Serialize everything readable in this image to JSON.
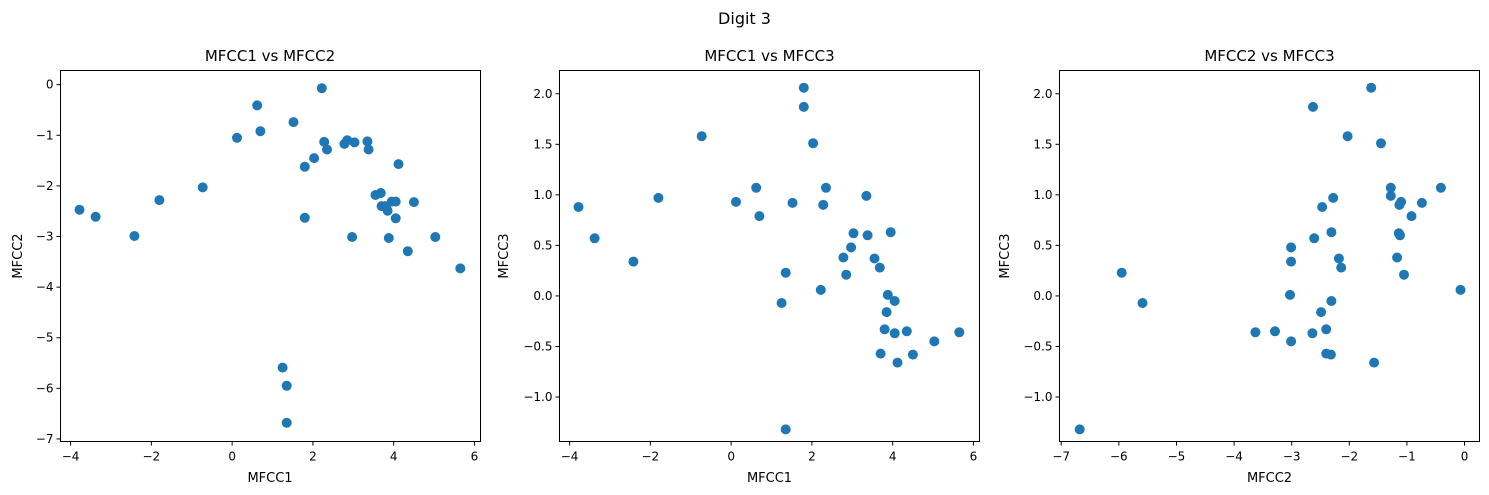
{
  "figure": {
    "title": "Digit 3"
  },
  "colors": {
    "marker": "#1f77b4"
  },
  "chart_data": [
    {
      "type": "scatter",
      "title": "MFCC1 vs MFCC2",
      "xlabel": "MFCC1",
      "ylabel": "MFCC2",
      "xlim": [
        -4.25,
        6.15
      ],
      "ylim": [
        -7.05,
        0.28
      ],
      "xticks": [
        -4,
        -2,
        0,
        2,
        4,
        6
      ],
      "yticks": [
        -7,
        -6,
        -5,
        -4,
        -3,
        -2,
        -1,
        0
      ],
      "grid": false,
      "points": [
        [
          -3.78,
          -2.47
        ],
        [
          -3.38,
          -2.61
        ],
        [
          -2.42,
          -2.99
        ],
        [
          -1.8,
          -2.28
        ],
        [
          -0.73,
          -2.03
        ],
        [
          0.12,
          -1.05
        ],
        [
          0.62,
          -0.41
        ],
        [
          0.7,
          -0.92
        ],
        [
          1.25,
          -5.59
        ],
        [
          1.35,
          -5.95
        ],
        [
          1.35,
          -6.68
        ],
        [
          1.52,
          -0.74
        ],
        [
          1.8,
          -1.62
        ],
        [
          1.8,
          -2.63
        ],
        [
          2.03,
          -1.45
        ],
        [
          2.22,
          -0.07
        ],
        [
          2.28,
          -1.13
        ],
        [
          2.35,
          -1.28
        ],
        [
          2.78,
          -1.17
        ],
        [
          2.85,
          -1.1
        ],
        [
          2.97,
          -3.01
        ],
        [
          3.03,
          -1.14
        ],
        [
          3.35,
          -1.12
        ],
        [
          3.38,
          -1.28
        ],
        [
          3.55,
          -2.18
        ],
        [
          3.68,
          -2.14
        ],
        [
          3.7,
          -2.4
        ],
        [
          3.8,
          -2.4
        ],
        [
          3.85,
          -2.49
        ],
        [
          3.88,
          -3.03
        ],
        [
          3.95,
          -2.31
        ],
        [
          4.05,
          -2.64
        ],
        [
          4.05,
          -2.31
        ],
        [
          4.12,
          -1.57
        ],
        [
          4.35,
          -3.29
        ],
        [
          4.5,
          -2.32
        ],
        [
          5.03,
          -3.01
        ],
        [
          5.65,
          -3.63
        ]
      ]
    },
    {
      "type": "scatter",
      "title": "MFCC1 vs MFCC3",
      "xlabel": "MFCC1",
      "ylabel": "MFCC3",
      "xlim": [
        -4.25,
        6.15
      ],
      "ylim": [
        -1.44,
        2.23
      ],
      "xticks": [
        -4,
        -2,
        0,
        2,
        4,
        6
      ],
      "yticks": [
        -1.0,
        -0.5,
        0.0,
        0.5,
        1.0,
        1.5,
        2.0
      ],
      "grid": false,
      "points": [
        [
          -3.78,
          0.88
        ],
        [
          -3.38,
          0.57
        ],
        [
          -2.42,
          0.34
        ],
        [
          -1.8,
          0.97
        ],
        [
          -0.73,
          1.58
        ],
        [
          0.12,
          0.93
        ],
        [
          0.62,
          1.07
        ],
        [
          0.7,
          0.79
        ],
        [
          1.25,
          -0.07
        ],
        [
          1.35,
          0.23
        ],
        [
          1.35,
          -1.32
        ],
        [
          1.52,
          0.92
        ],
        [
          1.8,
          2.06
        ],
        [
          1.8,
          1.87
        ],
        [
          2.03,
          1.51
        ],
        [
          2.22,
          0.06
        ],
        [
          2.28,
          0.9
        ],
        [
          2.35,
          1.07
        ],
        [
          2.78,
          0.38
        ],
        [
          2.85,
          0.21
        ],
        [
          2.97,
          0.48
        ],
        [
          3.03,
          0.62
        ],
        [
          3.35,
          0.99
        ],
        [
          3.38,
          0.6
        ],
        [
          3.55,
          0.37
        ],
        [
          3.68,
          0.28
        ],
        [
          3.7,
          -0.57
        ],
        [
          3.8,
          -0.33
        ],
        [
          3.85,
          -0.16
        ],
        [
          3.88,
          0.01
        ],
        [
          3.95,
          0.63
        ],
        [
          4.05,
          -0.05
        ],
        [
          4.05,
          -0.37
        ],
        [
          4.12,
          -0.66
        ],
        [
          4.35,
          -0.35
        ],
        [
          4.5,
          -0.58
        ],
        [
          5.03,
          -0.45
        ],
        [
          5.65,
          -0.36
        ]
      ]
    },
    {
      "type": "scatter",
      "title": "MFCC2 vs MFCC3",
      "xlabel": "MFCC2",
      "ylabel": "MFCC3",
      "xlim": [
        -7.03,
        0.26
      ],
      "ylim": [
        -1.44,
        2.23
      ],
      "xticks": [
        -7,
        -6,
        -5,
        -4,
        -3,
        -2,
        -1,
        0
      ],
      "yticks": [
        -1.0,
        -0.5,
        0.0,
        0.5,
        1.0,
        1.5,
        2.0
      ],
      "grid": false,
      "points": [
        [
          -6.68,
          -1.32
        ],
        [
          -5.95,
          0.23
        ],
        [
          -5.59,
          -0.07
        ],
        [
          -3.63,
          -0.36
        ],
        [
          -3.29,
          -0.35
        ],
        [
          -3.03,
          0.01
        ],
        [
          -3.01,
          0.48
        ],
        [
          -3.01,
          0.34
        ],
        [
          -3.01,
          -0.45
        ],
        [
          -2.64,
          -0.37
        ],
        [
          -2.63,
          1.87
        ],
        [
          -2.61,
          0.57
        ],
        [
          -2.49,
          -0.16
        ],
        [
          -2.47,
          0.88
        ],
        [
          -2.4,
          -0.33
        ],
        [
          -2.4,
          -0.57
        ],
        [
          -2.32,
          -0.58
        ],
        [
          -2.31,
          -0.05
        ],
        [
          -2.31,
          0.63
        ],
        [
          -2.28,
          0.97
        ],
        [
          -2.18,
          0.37
        ],
        [
          -2.14,
          0.28
        ],
        [
          -2.03,
          1.58
        ],
        [
          -1.62,
          2.06
        ],
        [
          -1.57,
          -0.66
        ],
        [
          -1.45,
          1.51
        ],
        [
          -1.28,
          0.99
        ],
        [
          -1.28,
          1.07
        ],
        [
          -1.17,
          0.38
        ],
        [
          -1.14,
          0.62
        ],
        [
          -1.13,
          0.9
        ],
        [
          -1.12,
          0.6
        ],
        [
          -1.1,
          0.93
        ],
        [
          -1.05,
          0.21
        ],
        [
          -0.92,
          0.79
        ],
        [
          -0.74,
          0.92
        ],
        [
          -0.41,
          1.07
        ],
        [
          -0.07,
          0.06
        ]
      ]
    }
  ]
}
